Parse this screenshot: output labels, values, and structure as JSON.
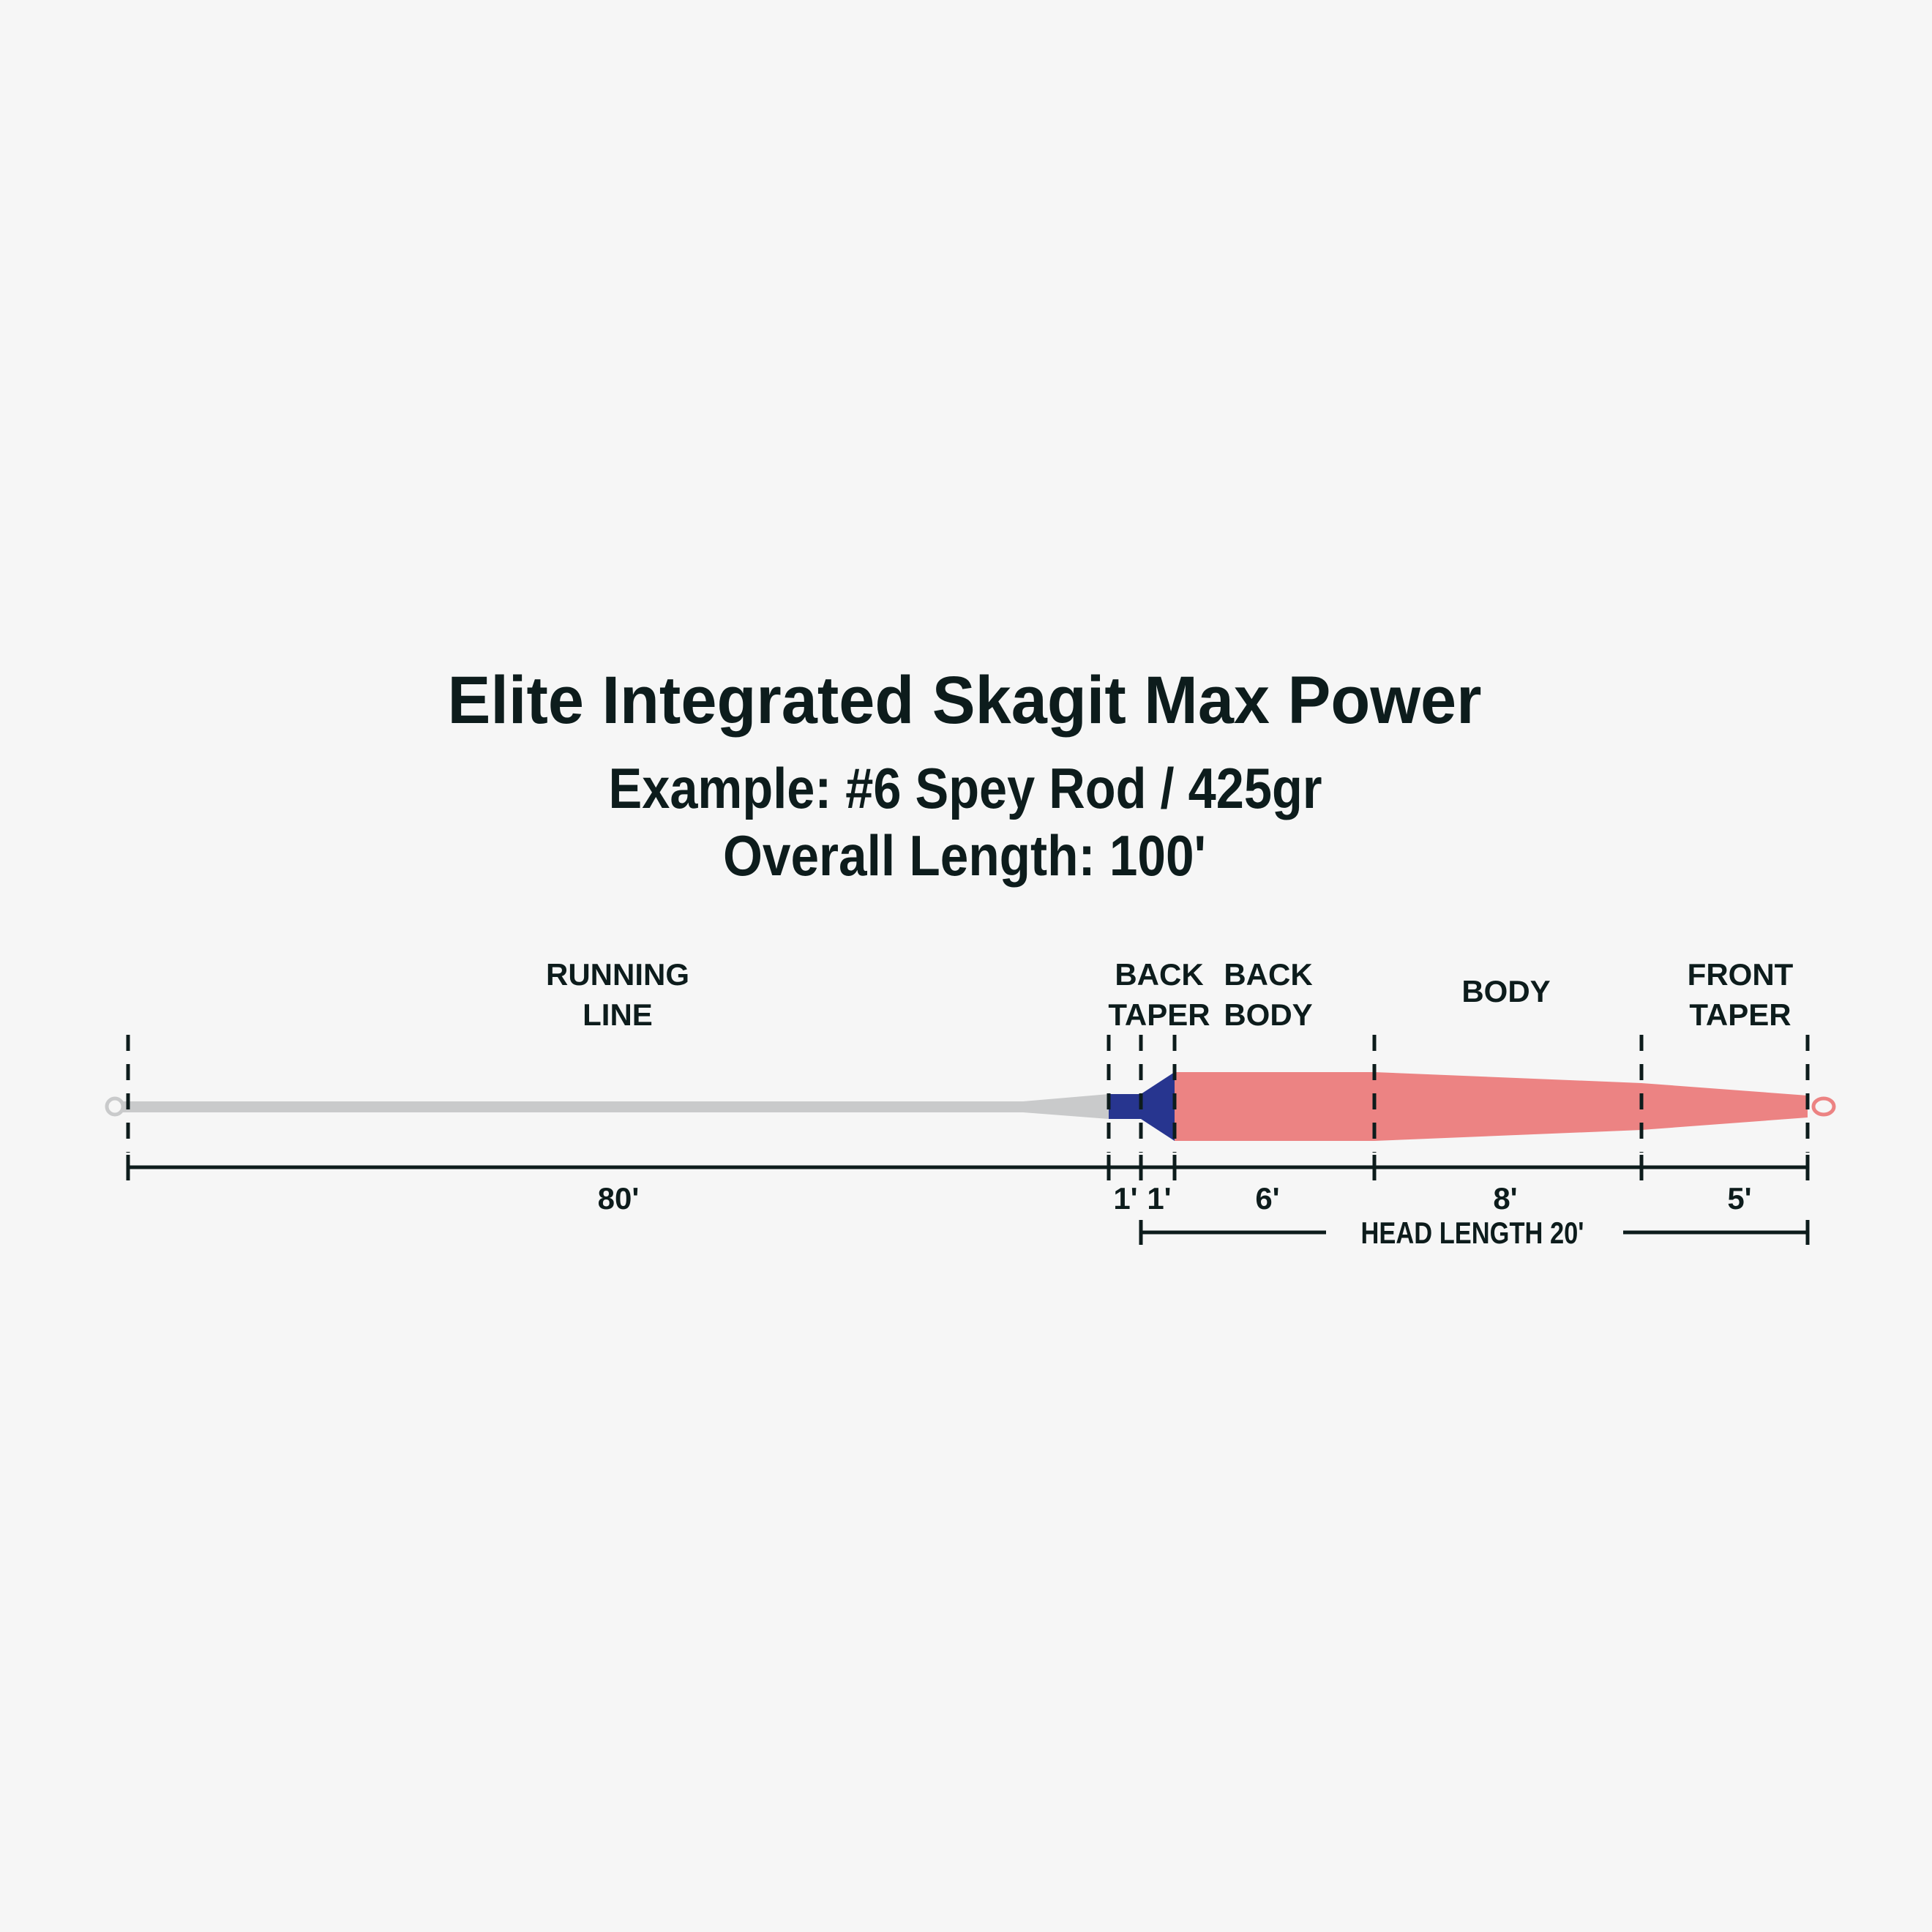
{
  "title": "Elite Integrated Skagit Max Power",
  "subtitle_line1": "Example: #6 Spey Rod / 425gr",
  "subtitle_line2": "Overall Length: 100'",
  "sections": [
    {
      "label_line1": "RUNNING",
      "label_line2": "LINE",
      "length": "80'"
    },
    {
      "label_line1": "",
      "label_line2": "",
      "length": "1'"
    },
    {
      "label_line1": "BACK",
      "label_line2": "TAPER",
      "length": "1'"
    },
    {
      "label_line1": "BACK",
      "label_line2": "BODY",
      "length": "6'"
    },
    {
      "label_line1": "BODY",
      "label_line2": "",
      "length": "8'"
    },
    {
      "label_line1": "FRONT",
      "label_line2": "TAPER",
      "length": "5'"
    }
  ],
  "head_length_label": "HEAD LENGTH 20'",
  "colors": {
    "background": "#f6f6f6",
    "text": "#0d1c1c",
    "running_line": "#c9cacb",
    "back_taper": "#27358f",
    "head": "#ec8383"
  }
}
